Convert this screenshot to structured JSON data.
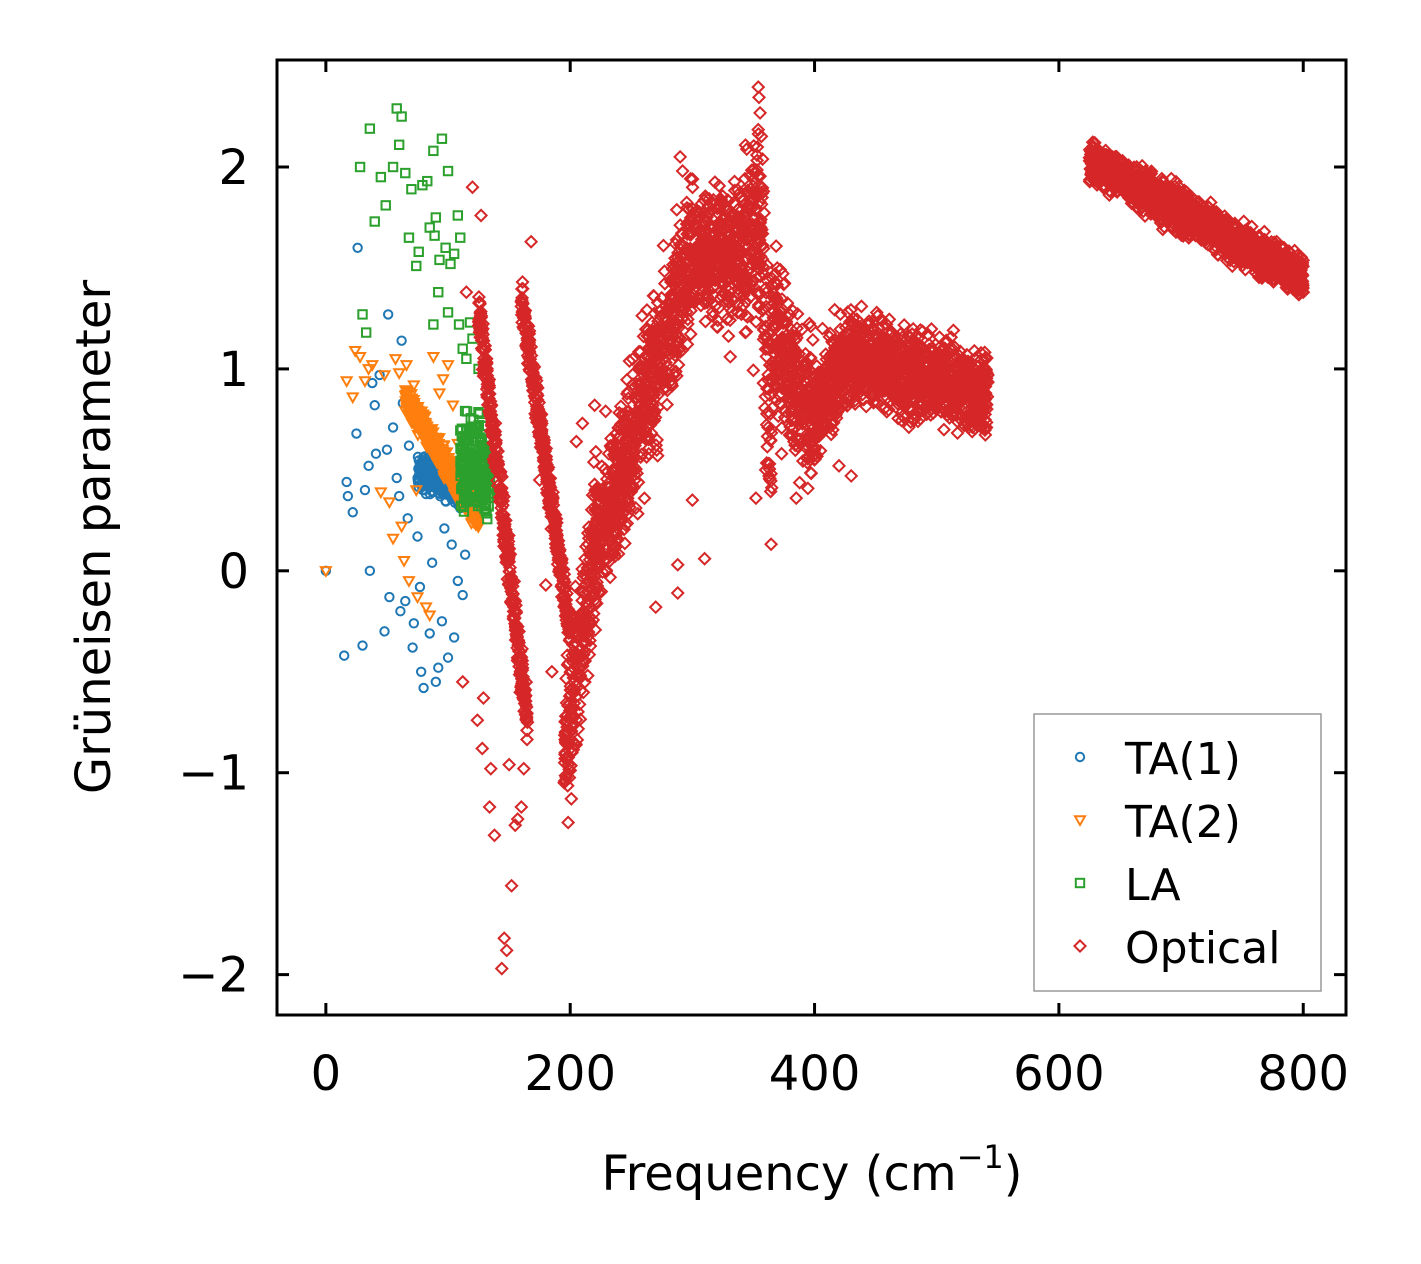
{
  "chart_data": {
    "type": "scatter",
    "title": "",
    "xlabel_main": "Frequency (cm",
    "xlabel_sup": "−1",
    "xlabel_tail": ")",
    "ylabel": "Grüneisen parameter",
    "xlim": [
      -40,
      835
    ],
    "ylim": [
      -2.2,
      2.53
    ],
    "x_ticks": [
      0,
      200,
      400,
      600,
      800
    ],
    "y_ticks": [
      -2,
      -1,
      0,
      1,
      2
    ],
    "x_tick_labels": [
      "0",
      "200",
      "400",
      "600",
      "800"
    ],
    "y_tick_labels": [
      "−2",
      "−1",
      "0",
      "1",
      "2"
    ],
    "grid": false,
    "legend_position": "lower-right",
    "series": [
      {
        "name": "TA(1)",
        "marker": "circle",
        "color": "#1f77b4",
        "points": [
          [
            0,
            0
          ],
          [
            15,
            -0.42
          ],
          [
            17,
            0.44
          ],
          [
            18,
            0.37
          ],
          [
            22,
            0.29
          ],
          [
            25,
            0.68
          ],
          [
            26,
            1.6
          ],
          [
            30,
            -0.37
          ],
          [
            32,
            0.4
          ],
          [
            35,
            0.52
          ],
          [
            36,
            0
          ],
          [
            38,
            0.93
          ],
          [
            40,
            0.82
          ],
          [
            41,
            0.58
          ],
          [
            44,
            0.97
          ],
          [
            48,
            -0.3
          ],
          [
            50,
            0.6
          ],
          [
            51,
            1.27
          ],
          [
            52,
            -0.13
          ],
          [
            55,
            0.71
          ],
          [
            58,
            0.46
          ],
          [
            60,
            0.37
          ],
          [
            61,
            -0.2
          ],
          [
            62,
            1.14
          ],
          [
            63,
            0.83
          ],
          [
            65,
            -0.15
          ],
          [
            67,
            0.26
          ],
          [
            68,
            0.62
          ],
          [
            70,
            0.77
          ],
          [
            71,
            -0.38
          ],
          [
            72,
            -0.26
          ],
          [
            75,
            0.17
          ],
          [
            77,
            -0.08
          ],
          [
            78,
            -0.5
          ],
          [
            80,
            -0.58
          ],
          [
            82,
            0.38
          ],
          [
            85,
            -0.31
          ],
          [
            87,
            0.04
          ],
          [
            90,
            -0.55
          ],
          [
            92,
            -0.48
          ],
          [
            95,
            -0.25
          ],
          [
            97,
            0.21
          ],
          [
            100,
            -0.43
          ],
          [
            103,
            0.13
          ],
          [
            105,
            -0.33
          ],
          [
            108,
            -0.05
          ],
          [
            110,
            0.31
          ],
          [
            112,
            -0.12
          ],
          [
            114,
            0.08
          ]
        ],
        "bands": [
          [
            75,
            118,
            0.5,
            0.12,
            0.4
          ]
        ]
      },
      {
        "name": "TA(2)",
        "marker": "triangle-down",
        "color": "#ff7f0e",
        "points": [
          [
            0,
            0
          ],
          [
            17,
            0.94
          ],
          [
            22,
            0.86
          ],
          [
            24,
            1.09
          ],
          [
            28,
            1.06
          ],
          [
            32,
            0.94
          ],
          [
            35,
            1.0
          ],
          [
            38,
            1.02
          ],
          [
            45,
            0.39
          ],
          [
            48,
            0.97
          ],
          [
            52,
            0.34
          ],
          [
            55,
            0.16
          ],
          [
            57,
            1.05
          ],
          [
            60,
            0.98
          ],
          [
            62,
            0.22
          ],
          [
            64,
            0.05
          ],
          [
            66,
            1.02
          ],
          [
            68,
            -0.05
          ],
          [
            72,
            0.92
          ],
          [
            74,
            0.4
          ],
          [
            75,
            -0.13
          ],
          [
            80,
            0.76
          ],
          [
            82,
            -0.18
          ],
          [
            85,
            -0.22
          ],
          [
            88,
            1.06
          ],
          [
            90,
            0.61
          ],
          [
            93,
            0.88
          ],
          [
            96,
            0.95
          ],
          [
            100,
            1.02
          ],
          [
            104,
            0.82
          ],
          [
            108,
            0.63
          ]
        ],
        "bands": [
          [
            65,
            125,
            0.85,
            0.1,
            0.25
          ]
        ]
      },
      {
        "name": "LA",
        "marker": "square",
        "color": "#2ca02c",
        "points": [
          [
            28,
            2.0
          ],
          [
            36,
            2.19
          ],
          [
            40,
            1.73
          ],
          [
            45,
            1.95
          ],
          [
            49,
            1.81
          ],
          [
            55,
            2.0
          ],
          [
            58,
            2.29
          ],
          [
            60,
            2.11
          ],
          [
            62,
            2.25
          ],
          [
            65,
            1.97
          ],
          [
            68,
            1.65
          ],
          [
            70,
            1.89
          ],
          [
            74,
            1.51
          ],
          [
            76,
            1.58
          ],
          [
            79,
            1.91
          ],
          [
            83,
            1.93
          ],
          [
            85,
            1.7
          ],
          [
            88,
            2.08
          ],
          [
            89,
            1.66
          ],
          [
            90,
            1.75
          ],
          [
            93,
            1.54
          ],
          [
            95,
            2.14
          ],
          [
            98,
            1.6
          ],
          [
            100,
            1.98
          ],
          [
            102,
            1.52
          ],
          [
            105,
            1.57
          ],
          [
            108,
            1.76
          ],
          [
            109,
            1.22
          ],
          [
            110,
            1.65
          ],
          [
            112,
            1.1
          ],
          [
            115,
            1.05
          ],
          [
            118,
            1.23
          ],
          [
            120,
            1.15
          ],
          [
            125,
            1.0
          ],
          [
            30,
            1.27
          ],
          [
            33,
            1.18
          ],
          [
            88,
            1.22
          ],
          [
            92,
            1.38
          ],
          [
            100,
            1.28
          ]
        ],
        "bands": [
          [
            110,
            135,
            0.55,
            0.35,
            0.5
          ]
        ]
      },
      {
        "name": "Optical",
        "marker": "diamond",
        "color": "#d62728",
        "points": [
          [
            112,
            -0.55
          ],
          [
            115,
            1.38
          ],
          [
            120,
            1.9
          ],
          [
            124,
            -0.74
          ],
          [
            127,
            1.76
          ],
          [
            128,
            -0.88
          ],
          [
            129,
            -0.63
          ],
          [
            134,
            -1.17
          ],
          [
            135,
            -0.98
          ],
          [
            138,
            -1.31
          ],
          [
            144,
            -1.97
          ],
          [
            146,
            -1.82
          ],
          [
            148,
            -1.88
          ],
          [
            150,
            -0.96
          ],
          [
            152,
            -1.56
          ],
          [
            155,
            -1.26
          ],
          [
            157,
            -1.23
          ],
          [
            160,
            -1.17
          ],
          [
            162,
            -0.98
          ],
          [
            165,
            -0.75
          ],
          [
            168,
            1.63
          ],
          [
            175,
            0.45
          ],
          [
            180,
            -0.07
          ],
          [
            185,
            -0.5
          ],
          [
            205,
            0.64
          ],
          [
            210,
            0.73
          ],
          [
            220,
            0.82
          ],
          [
            229,
            0.79
          ],
          [
            270,
            -0.18
          ],
          [
            288,
            0.03
          ],
          [
            288,
            -0.11
          ],
          [
            290,
            2.05
          ],
          [
            292,
            1.98
          ],
          [
            300,
            0.35
          ],
          [
            310,
            0.06
          ],
          [
            331,
            1.06
          ],
          [
            352,
            0.36
          ],
          [
            360,
            0.5
          ],
          [
            373,
            0.58
          ],
          [
            385,
            0.36
          ],
          [
            420,
            0.52
          ],
          [
            430,
            0.47
          ],
          [
            540,
            0.88
          ],
          [
            800,
            1.38
          ]
        ],
        "bands": [
          [
            125,
            165,
            1.3,
            0.18,
            -0.75
          ],
          [
            160,
            200,
            1.35,
            0.15,
            -0.3
          ],
          [
            195,
            222,
            -0.95,
            0.55,
            0.2
          ],
          [
            220,
            298,
            0.05,
            0.55,
            1.55
          ],
          [
            298,
            343,
            1.55,
            0.45,
            1.6
          ],
          [
            343,
            355,
            1.6,
            0.75,
            1.75
          ],
          [
            355,
            365,
            1.85,
            0.75,
            0.45
          ],
          [
            365,
            402,
            1.2,
            0.55,
            0.7
          ],
          [
            402,
            432,
            0.82,
            0.35,
            1.1
          ],
          [
            432,
            542,
            1.05,
            0.3,
            0.88
          ],
          [
            625,
            800,
            2.03,
            0.15,
            1.45
          ]
        ]
      }
    ]
  }
}
